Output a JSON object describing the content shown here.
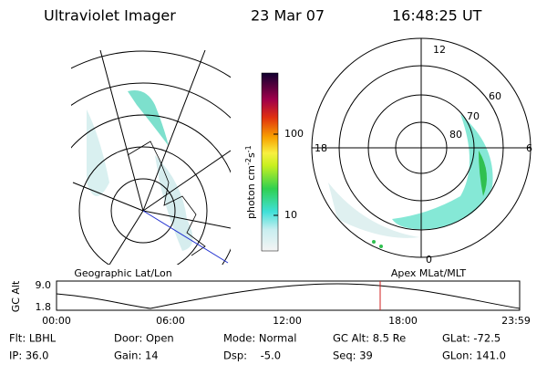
{
  "header": {
    "title": "Ultraviolet Imager",
    "date": "23 Mar 07",
    "time": "16:48:25 UT"
  },
  "colorbar": {
    "unit": [
      "photon cm",
      "-2",
      "s",
      "-1"
    ],
    "ticks": [
      "100",
      "10"
    ]
  },
  "polar": {
    "mlt_labels": [
      "12",
      "18",
      "6",
      "0"
    ],
    "lat_labels": [
      "60",
      "70",
      "80"
    ]
  },
  "timeline": {
    "left_label": "Geographic Lat/Lon",
    "right_label": "Apex MLat/MLT",
    "y_label": "GC Alt",
    "y_ticks": [
      "9.0",
      "1.8"
    ],
    "x_ticks": [
      "00:00",
      "06:00",
      "12:00",
      "18:00",
      "23:59"
    ]
  },
  "info": {
    "rows": [
      [
        "Flt: LBHL",
        "Door: Open",
        "Mode: Normal",
        "GC Alt: 8.5 Re",
        "GLat: -72.5"
      ],
      [
        "IP: 36.0",
        "Gain: 14",
        "Dsp:    -5.0",
        "Seq: 39",
        "GLon: 141.0"
      ]
    ]
  }
}
